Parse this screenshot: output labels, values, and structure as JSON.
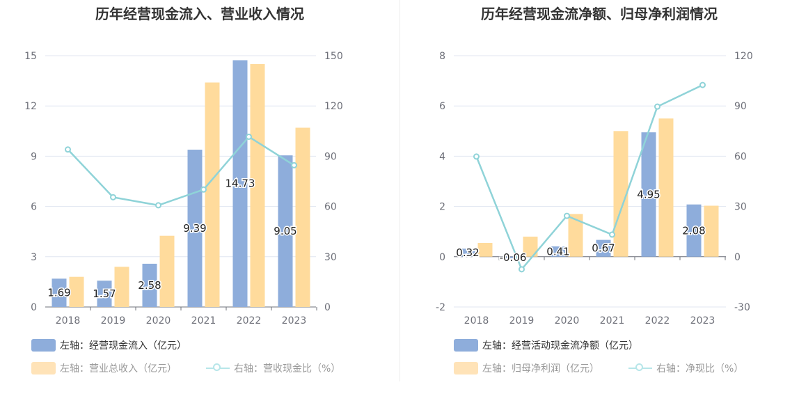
{
  "charts": [
    {
      "title": "历年经营现金流入、营业收入情况",
      "legend": [
        {
          "label": "左轴：经营现金流入（亿元）",
          "color": "#8eaddb",
          "kind": "bar"
        },
        {
          "label": "左轴：营业总收入（亿元）",
          "color": "#ffe3b8",
          "kind": "bar",
          "faded": true
        },
        {
          "label": "右轴：营收现金比（%）",
          "color": "#b7e6e9",
          "kind": "line",
          "faded": true
        }
      ]
    },
    {
      "title": "历年经营现金流净额、归母净利润情况",
      "legend": [
        {
          "label": "左轴：经营活动现金流净额（亿元）",
          "color": "#8eaddb",
          "kind": "bar"
        },
        {
          "label": "左轴：归母净利润（亿元）",
          "color": "#ffe3b8",
          "kind": "bar",
          "faded": true
        },
        {
          "label": "右轴：净现比（%）",
          "color": "#b7e6e9",
          "kind": "line",
          "faded": true
        }
      ]
    }
  ],
  "chart_data": [
    {
      "type": "bar",
      "title": "历年经营现金流入、营业收入情况",
      "categories": [
        "2018",
        "2019",
        "2020",
        "2021",
        "2022",
        "2023"
      ],
      "left_axis": {
        "range": [
          0,
          15
        ],
        "ticks": [
          "0",
          "3",
          "6",
          "9",
          "12",
          "15"
        ]
      },
      "right_axis": {
        "range": [
          0,
          150
        ],
        "ticks": [
          "0",
          "30",
          "60",
          "90",
          "120",
          "150"
        ]
      },
      "series": [
        {
          "name": "左轴：经营现金流入（亿元）",
          "type": "bar",
          "axis": "left",
          "color": "#8eaddb",
          "values": [
            1.69,
            1.57,
            2.58,
            9.39,
            14.73,
            9.05
          ],
          "labels": [
            "1.69",
            "1.57",
            "2.58",
            "9.39",
            "14.73",
            "9.05"
          ]
        },
        {
          "name": "左轴：营业总收入（亿元）",
          "type": "bar",
          "axis": "left",
          "color": "#ffdb9c",
          "values": [
            1.8,
            2.4,
            4.25,
            13.4,
            14.5,
            10.7
          ]
        },
        {
          "name": "右轴：营收现金比（%）",
          "type": "line",
          "axis": "right",
          "color": "#8fd3d8",
          "values": [
            94,
            65.5,
            60.7,
            70.1,
            101.6,
            84.6
          ]
        }
      ],
      "grid": true,
      "legend_position": "bottom-left"
    },
    {
      "type": "bar",
      "title": "历年经营现金流净额、归母净利润情况",
      "categories": [
        "2018",
        "2019",
        "2020",
        "2021",
        "2022",
        "2023"
      ],
      "left_axis": {
        "range": [
          -2,
          8
        ],
        "ticks": [
          "-2",
          "0",
          "2",
          "4",
          "6",
          "8"
        ]
      },
      "right_axis": {
        "range": [
          -30,
          120
        ],
        "ticks": [
          "-30",
          "0",
          "30",
          "60",
          "90",
          "120"
        ]
      },
      "series": [
        {
          "name": "左轴：经营活动现金流净额（亿元）",
          "type": "bar",
          "axis": "left",
          "color": "#8eaddb",
          "values": [
            0.32,
            -0.06,
            0.41,
            0.67,
            4.95,
            2.08
          ],
          "labels": [
            "0.32",
            "-0.06",
            "0.41",
            "0.67",
            "4.95",
            "2.08"
          ]
        },
        {
          "name": "左轴：归母净利润（亿元）",
          "type": "bar",
          "axis": "left",
          "color": "#ffdb9c",
          "values": [
            0.55,
            0.8,
            1.7,
            5.0,
            5.5,
            2.03
          ]
        },
        {
          "name": "右轴：净现比（%）",
          "type": "line",
          "axis": "right",
          "color": "#8fd3d8",
          "values": [
            59.8,
            -7.5,
            24.4,
            13.2,
            89.6,
            102.5
          ]
        }
      ],
      "grid": true,
      "legend_position": "bottom-left"
    }
  ]
}
